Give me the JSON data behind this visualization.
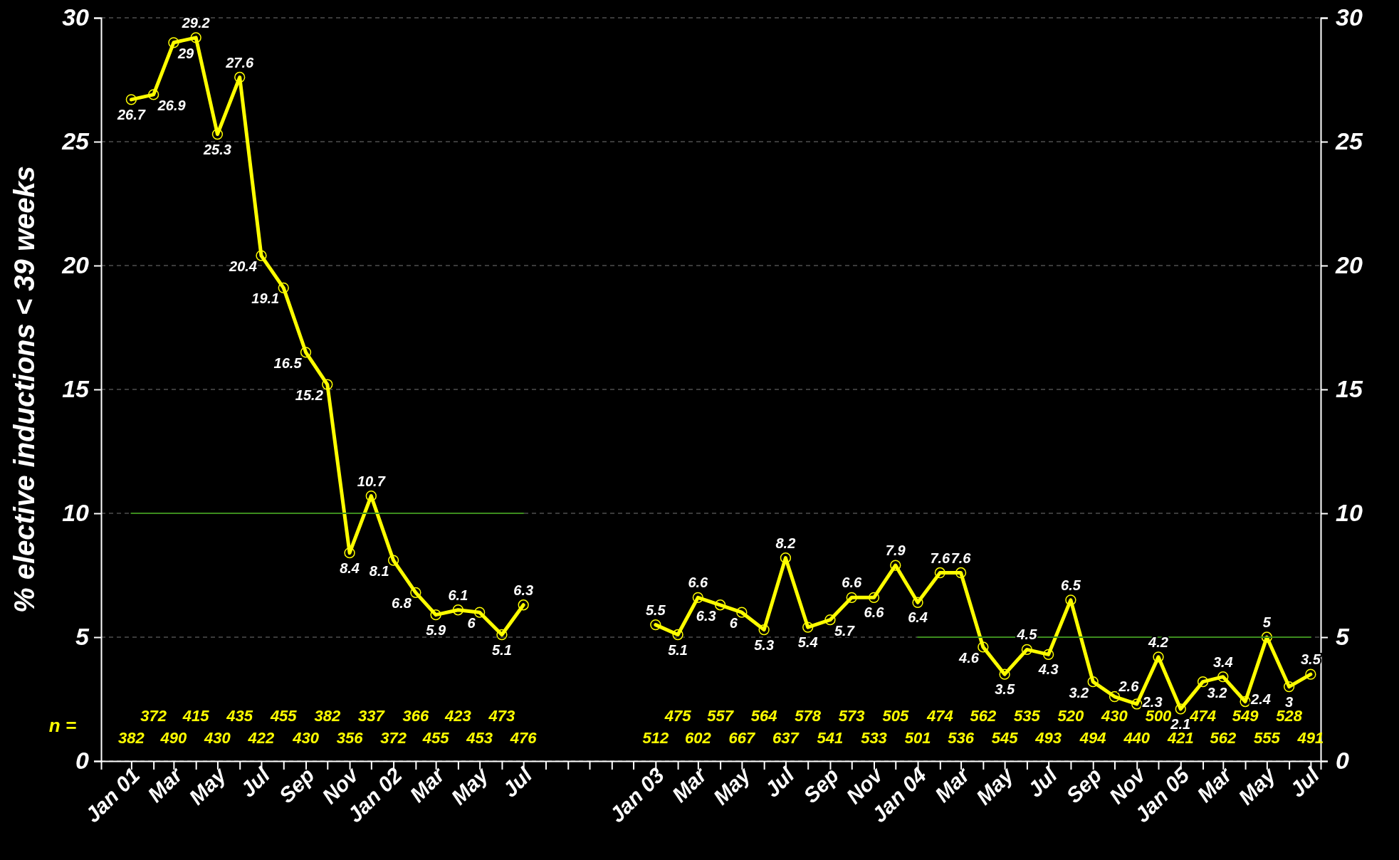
{
  "chart_data": {
    "type": "line",
    "ylabel": "% elective inductions < 39 weeks",
    "xlim": [
      "2000-11-20",
      "2005-07-15"
    ],
    "ylim": [
      0,
      30
    ],
    "yticks": [
      0,
      5,
      10,
      15,
      20,
      25,
      30
    ],
    "y2lim": [
      0,
      30
    ],
    "y2ticks": [
      0,
      5,
      10,
      15,
      20,
      25,
      30
    ],
    "xticks": [
      {
        "value": "2001-01",
        "label": "Jan 01"
      },
      {
        "value": "2001-02",
        "label": null
      },
      {
        "value": "2001-03",
        "label": "Mar"
      },
      {
        "value": "2001-04",
        "label": null
      },
      {
        "value": "2001-05",
        "label": "May"
      },
      {
        "value": "2001-06",
        "label": null
      },
      {
        "value": "2001-07",
        "label": "Jul"
      },
      {
        "value": "2001-08",
        "label": null
      },
      {
        "value": "2001-09",
        "label": "Sep"
      },
      {
        "value": "2001-10",
        "label": null
      },
      {
        "value": "2001-11",
        "label": "Nov"
      },
      {
        "value": "2001-12",
        "label": null
      },
      {
        "value": "2002-01",
        "label": "Jan 02"
      },
      {
        "value": "2002-02",
        "label": null
      },
      {
        "value": "2002-03",
        "label": "Mar"
      },
      {
        "value": "2002-04",
        "label": null
      },
      {
        "value": "2002-05",
        "label": "May"
      },
      {
        "value": "2002-06",
        "label": null
      },
      {
        "value": "2002-07",
        "label": "Jul"
      },
      {
        "value": "2002-08",
        "label": null
      },
      {
        "value": "2002-09",
        "label": null
      },
      {
        "value": "2002-10",
        "label": null
      },
      {
        "value": "2002-11",
        "label": null
      },
      {
        "value": "2002-12",
        "label": null
      },
      {
        "value": "2003-01",
        "label": "Jan 03"
      },
      {
        "value": "2003-02",
        "label": null
      },
      {
        "value": "2003-03",
        "label": "Mar"
      },
      {
        "value": "2003-04",
        "label": null
      },
      {
        "value": "2003-05",
        "label": "May"
      },
      {
        "value": "2003-06",
        "label": null
      },
      {
        "value": "2003-07",
        "label": "Jul"
      },
      {
        "value": "2003-08",
        "label": null
      },
      {
        "value": "2003-09",
        "label": "Sep"
      },
      {
        "value": "2003-10",
        "label": null
      },
      {
        "value": "2003-11",
        "label": "Nov"
      },
      {
        "value": "2003-12",
        "label": null
      },
      {
        "value": "2004-01",
        "label": "Jan 04"
      },
      {
        "value": "2004-02",
        "label": null
      },
      {
        "value": "2004-03",
        "label": "Mar"
      },
      {
        "value": "2004-04",
        "label": null
      },
      {
        "value": "2004-05",
        "label": "May"
      },
      {
        "value": "2004-06",
        "label": null
      },
      {
        "value": "2004-07",
        "label": "Jul"
      },
      {
        "value": "2004-08",
        "label": null
      },
      {
        "value": "2004-09",
        "label": "Sep"
      },
      {
        "value": "2004-10",
        "label": null
      },
      {
        "value": "2004-11",
        "label": "Nov"
      },
      {
        "value": "2004-12",
        "label": null
      },
      {
        "value": "2005-01",
        "label": "Jan 05"
      },
      {
        "value": "2005-02",
        "label": null
      },
      {
        "value": "2005-03",
        "label": "Mar"
      },
      {
        "value": "2005-04",
        "label": null
      },
      {
        "value": "2005-05",
        "label": "May"
      },
      {
        "value": "2005-06",
        "label": null
      },
      {
        "value": "2005-07",
        "label": "Jul"
      }
    ],
    "grid": "y",
    "marker": "circle",
    "line_style": "solid",
    "series": [
      {
        "color": "#ffff00",
        "x": [
          "2001-01",
          "2001-02",
          "2001-03",
          "2001-04",
          "2001-05",
          "2001-06",
          "2001-07",
          "2001-08",
          "2001-09",
          "2001-10",
          "2001-11",
          "2001-12",
          "2002-01",
          "2002-02",
          "2002-03",
          "2002-04",
          "2002-05",
          "2002-06",
          "2002-07",
          "2002-08",
          "2002-09",
          "2002-10",
          "2002-11",
          "2002-12",
          "2003-01",
          "2003-02",
          "2003-03",
          "2003-04",
          "2003-05",
          "2003-06",
          "2003-07",
          "2003-08",
          "2003-09",
          "2003-10",
          "2003-11",
          "2003-12",
          "2004-01",
          "2004-02",
          "2004-03",
          "2004-04",
          "2004-05",
          "2004-06",
          "2004-07",
          "2004-08",
          "2004-09",
          "2004-10",
          "2004-11",
          "2004-12",
          "2005-01",
          "2005-02",
          "2005-03",
          "2005-04",
          "2005-05",
          "2005-06",
          "2005-07"
        ],
        "values": [
          26.7,
          26.9,
          29,
          29.2,
          25.3,
          27.6,
          20.4,
          19.1,
          16.5,
          15.2,
          8.4,
          10.7,
          8.1,
          6.8,
          5.9,
          6.1,
          6,
          5.1,
          6.3,
          null,
          null,
          null,
          null,
          null,
          5.5,
          5.1,
          6.6,
          6.3,
          6,
          5.3,
          8.2,
          5.4,
          5.7,
          6.6,
          6.6,
          7.9,
          6.4,
          7.6,
          7.6,
          4.6,
          3.5,
          4.5,
          4.3,
          6.5,
          3.2,
          2.6,
          2.3,
          4.2,
          2.1,
          3.2,
          3.4,
          2.4,
          5,
          3,
          3.5
        ],
        "value_labels": [
          "26.7",
          "26.9",
          "29",
          "29.2",
          "25.3",
          "27.6",
          "20.4",
          "19.1",
          "16.5",
          "15.2",
          "8.4",
          "10.7",
          "8.1",
          "6.8",
          "5.9",
          "6.1",
          "6",
          "5.1",
          "6.3",
          null,
          null,
          null,
          null,
          null,
          "5.5",
          "5.1",
          "6.6",
          "6.3",
          "6",
          "5.3",
          "8.2",
          "5.4",
          "5.7",
          "6.6",
          "6.6",
          "7.9",
          "6.4",
          "7.6",
          "7.6",
          "4.6",
          "3.5",
          "4.5",
          "4.3",
          "6.5",
          "3.2",
          "2.6",
          "2.3",
          "4.2",
          "2.1",
          "3.2",
          "3.4",
          "2.4",
          "5",
          "3",
          "3.5"
        ]
      },
      {
        "type": "line",
        "marker": "none",
        "color": "#3c8c1e",
        "x": [
          "2001-01",
          "2002-07"
        ],
        "values": [
          10,
          10
        ]
      },
      {
        "type": "line",
        "marker": "none",
        "color": "#3c8c1e",
        "x": [
          "2004-01",
          "2005-07"
        ],
        "values": [
          5,
          5
        ]
      }
    ],
    "annotations": [
      "n =",
      "382",
      "372",
      "490",
      "415",
      "430",
      "435",
      "422",
      "455",
      "430",
      "382",
      "356",
      "337",
      "372",
      "366",
      "455",
      "423",
      "453",
      "473",
      "476",
      "512",
      "475",
      "602",
      "557",
      "667",
      "564",
      "637",
      "578",
      "541",
      "573",
      "533",
      "505",
      "501",
      "474",
      "536",
      "562",
      "545",
      "535",
      "493",
      "520",
      "494",
      "430",
      "440",
      "500",
      "421",
      "474",
      "562",
      "549",
      "555",
      "528",
      "491"
    ]
  }
}
